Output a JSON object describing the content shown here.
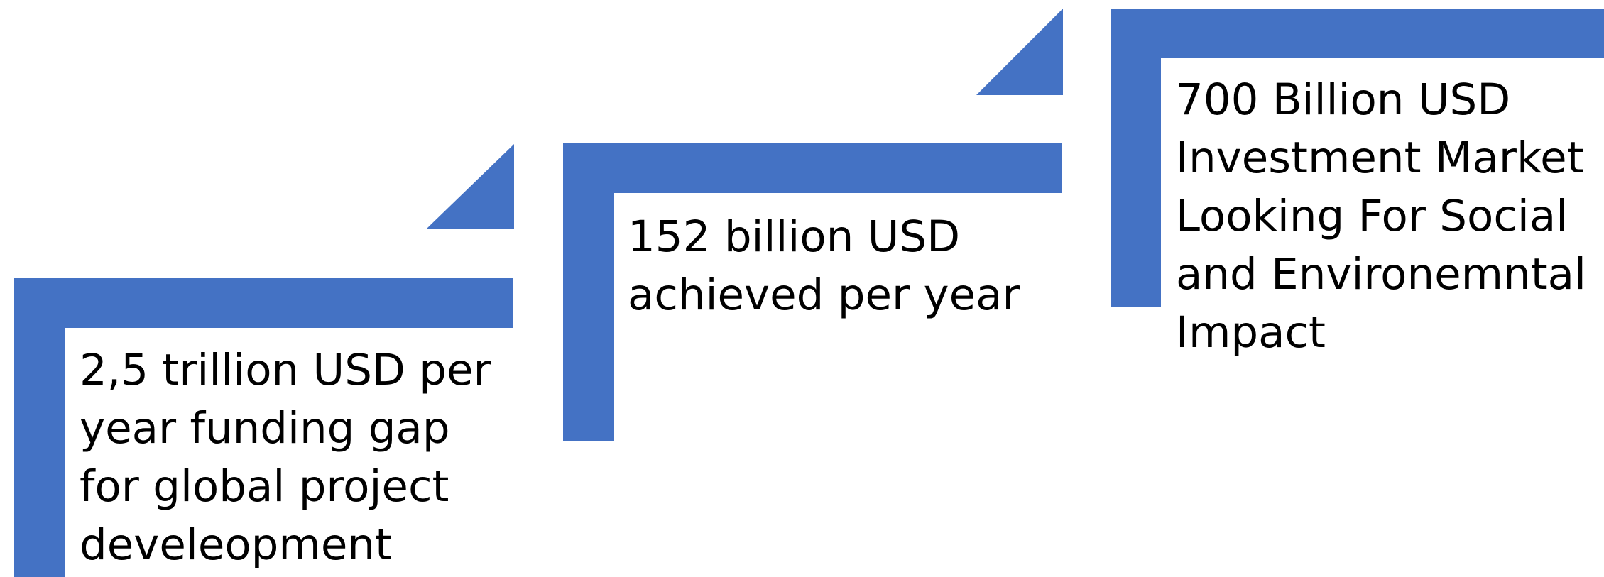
{
  "colors": {
    "accent": "#4472C4",
    "text": "#000000",
    "background": "#FFFFFF"
  },
  "steps": [
    {
      "text": "2,5 trillion USD per\nyear funding gap\nfor global project\ndeveleopment"
    },
    {
      "text": "152 billion USD\nachieved per year"
    },
    {
      "text": "700 Billion USD\nInvestment Market\nLooking For Social\nand Environemntal\nImpact"
    }
  ]
}
